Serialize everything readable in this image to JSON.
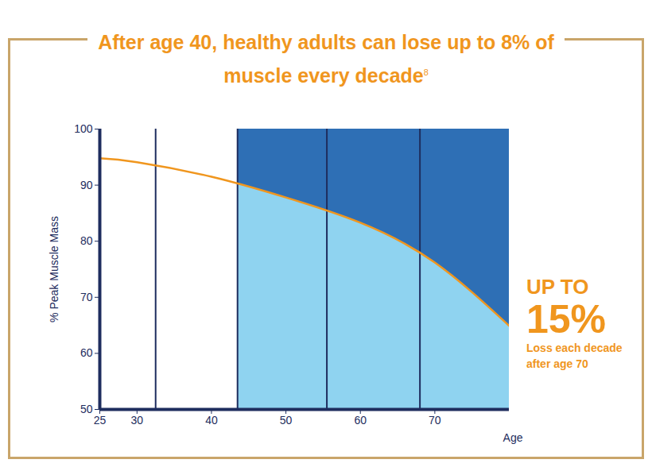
{
  "chart_data": {
    "type": "line",
    "title": "After age 40, healthy adults can lose up to 8% of muscle every decade",
    "title_footnote": "8",
    "x": [
      25,
      30,
      40,
      50,
      60,
      70,
      80
    ],
    "values": [
      94.8,
      94.1,
      91.5,
      87.8,
      83.3,
      76.2,
      64.9
    ],
    "color": "#f0961e",
    "xlim": [
      25,
      80
    ],
    "xticks": [
      25,
      30,
      40,
      50,
      60,
      70
    ],
    "ylim": [
      50,
      100
    ],
    "yticks": [
      50,
      60,
      70,
      80,
      90,
      100
    ],
    "xlabel": "Age",
    "ylabel": "% Peak Muscle Mass",
    "dividers": [
      32.5,
      43.5,
      55.5,
      68
    ],
    "shaded_from": 43.5,
    "annotation": [
      "UP TO",
      "15%",
      "Loss each decade",
      "after age 70"
    ],
    "grid": false
  }
}
